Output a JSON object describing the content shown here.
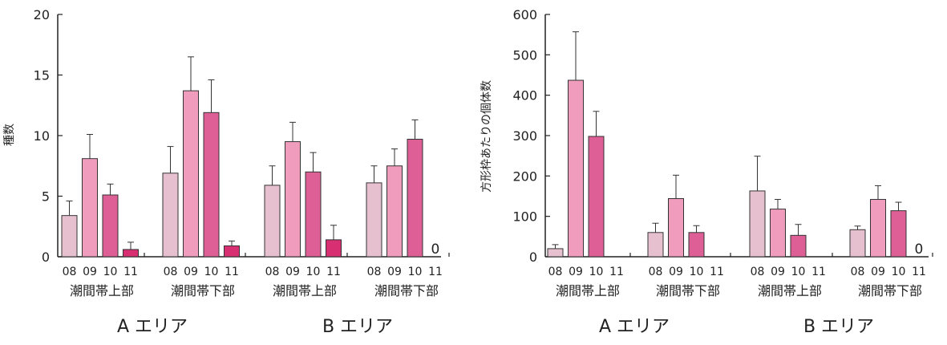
{
  "colors": {
    "y2008": "#e6c0cf",
    "y2009": "#f09dbd",
    "y2010": "#de5f95",
    "y2011": "#d72f72",
    "axis": "#222222"
  },
  "chart_data": [
    {
      "type": "bar",
      "ylabel": "種数",
      "ylim": [
        0,
        20
      ],
      "yticks": [
        0,
        5,
        10,
        15,
        20
      ],
      "year_labels": [
        "08",
        "09",
        "10",
        "11"
      ],
      "groups": [
        {
          "label": "潮間帯上部",
          "values": [
            3.4,
            8.1,
            5.1,
            0.6
          ],
          "errors": [
            1.2,
            2.0,
            0.9,
            0.6
          ],
          "zero_label": ""
        },
        {
          "label": "潮間帯下部",
          "values": [
            6.9,
            13.7,
            11.9,
            0.9
          ],
          "errors": [
            2.2,
            2.8,
            2.7,
            0.4
          ],
          "zero_label": ""
        },
        {
          "label": "潮間帯上部",
          "values": [
            5.9,
            9.5,
            7.0,
            1.4
          ],
          "errors": [
            1.6,
            1.6,
            1.6,
            1.2
          ],
          "zero_label": ""
        },
        {
          "label": "潮間帯下部",
          "values": [
            6.1,
            7.5,
            9.7,
            null
          ],
          "errors": [
            1.4,
            1.4,
            1.6,
            null
          ],
          "zero_label": "0"
        }
      ],
      "areas": [
        "A エリア",
        "B エリア"
      ]
    },
    {
      "type": "bar",
      "ylabel": "方形枠あたりの個体数",
      "ylim": [
        0,
        600
      ],
      "yticks": [
        0,
        100,
        200,
        300,
        400,
        500,
        600
      ],
      "year_labels": [
        "08",
        "09",
        "10",
        "11"
      ],
      "groups": [
        {
          "label": "潮間帯上部",
          "values": [
            20,
            437,
            298,
            null
          ],
          "errors": [
            10,
            120,
            62,
            null
          ],
          "zero_label": ""
        },
        {
          "label": "潮間帯下部",
          "values": [
            60,
            144,
            60,
            null
          ],
          "errors": [
            23,
            58,
            17,
            null
          ],
          "zero_label": ""
        },
        {
          "label": "潮間帯上部",
          "values": [
            163,
            118,
            53,
            null
          ],
          "errors": [
            86,
            24,
            27,
            null
          ],
          "zero_label": ""
        },
        {
          "label": "潮間帯下部",
          "values": [
            67,
            142,
            114,
            null
          ],
          "errors": [
            9,
            34,
            21,
            null
          ],
          "zero_label": "0"
        }
      ],
      "areas": [
        "A エリア",
        "B エリア"
      ]
    }
  ]
}
